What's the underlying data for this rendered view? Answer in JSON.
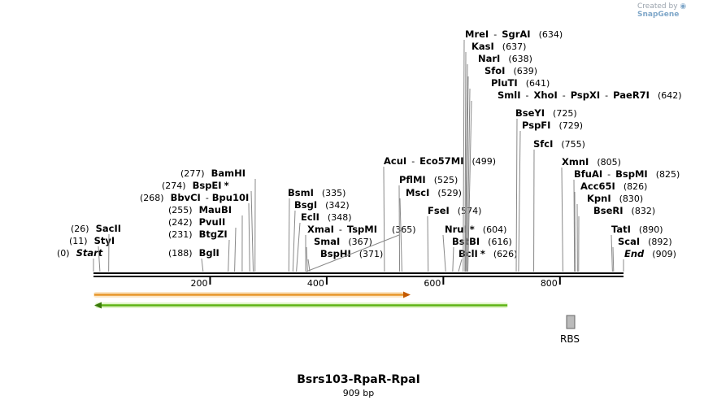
{
  "watermark": {
    "prefix": "Created by",
    "brand": "SnapGene"
  },
  "title": "Bsrs103-RpaR-RpaI",
  "subtitle": "909 bp",
  "sequence_length": 909,
  "ticks": [
    "200",
    "400",
    "600",
    "800"
  ],
  "feature_label": "RBS",
  "sites": [
    {
      "parts": [
        "Start"
      ],
      "pos": "(0)",
      "side": "left",
      "italic": true
    },
    {
      "parts": [
        "StyI"
      ],
      "pos": "(11)",
      "side": "left"
    },
    {
      "parts": [
        "SacII"
      ],
      "pos": "(26)",
      "side": "left"
    },
    {
      "parts": [
        "BglI"
      ],
      "pos": "(188)",
      "side": "left"
    },
    {
      "parts": [
        "BtgZI"
      ],
      "pos": "(231)",
      "side": "left"
    },
    {
      "parts": [
        "PvuII"
      ],
      "pos": "(242)",
      "side": "left"
    },
    {
      "parts": [
        "MauBI"
      ],
      "pos": "(255)",
      "side": "left"
    },
    {
      "parts": [
        "BbvCI",
        "Bpu10I"
      ],
      "pos": "(268)",
      "side": "left"
    },
    {
      "parts": [
        "BspEI"
      ],
      "star": true,
      "pos": "(274)",
      "side": "left"
    },
    {
      "parts": [
        "BamHI"
      ],
      "pos": "(277)",
      "side": "left"
    },
    {
      "parts": [
        "BsmI"
      ],
      "pos": "(335)",
      "side": "right"
    },
    {
      "parts": [
        "BsgI"
      ],
      "pos": "(342)",
      "side": "right"
    },
    {
      "parts": [
        "EclI"
      ],
      "pos": "(348)",
      "side": "right"
    },
    {
      "parts": [
        "XmaI",
        "TspMI"
      ],
      "pos": "",
      "side": "right"
    },
    {
      "parts": [
        "SmaI"
      ],
      "pos": "(367)",
      "side": "right"
    },
    {
      "parts": [
        "BspHI"
      ],
      "pos": "(371)",
      "side": "right"
    },
    {
      "parts": [
        ""
      ],
      "pos": "(365)",
      "side": "right"
    },
    {
      "parts": [
        "AcuI",
        "Eco57MI"
      ],
      "pos": "(499)",
      "side": "right"
    },
    {
      "parts": [
        "PflMI"
      ],
      "pos": "(525)",
      "side": "right"
    },
    {
      "parts": [
        "MscI"
      ],
      "pos": "(529)",
      "side": "right"
    },
    {
      "parts": [
        "FseI"
      ],
      "pos": "(574)",
      "side": "right"
    },
    {
      "parts": [
        "NruI"
      ],
      "star": true,
      "pos": "(604)",
      "side": "right"
    },
    {
      "parts": [
        "BstBI"
      ],
      "pos": "(616)",
      "side": "right"
    },
    {
      "parts": [
        "BclI"
      ],
      "star": true,
      "pos": "(626)",
      "side": "right"
    },
    {
      "parts": [
        "MreI",
        "SgrAI"
      ],
      "pos": "(634)",
      "side": "right"
    },
    {
      "parts": [
        "KasI"
      ],
      "pos": "(637)",
      "side": "right"
    },
    {
      "parts": [
        "NarI"
      ],
      "pos": "(638)",
      "side": "right"
    },
    {
      "parts": [
        "SfoI"
      ],
      "pos": "(639)",
      "side": "right"
    },
    {
      "parts": [
        "PluTI"
      ],
      "pos": "(641)",
      "side": "right"
    },
    {
      "parts": [
        "SmlI",
        "XhoI",
        "PspXI",
        "PaeR7I"
      ],
      "pos": "(642)",
      "side": "right"
    },
    {
      "parts": [
        "BseYI"
      ],
      "pos": "(725)",
      "side": "right"
    },
    {
      "parts": [
        "PspFI"
      ],
      "pos": "(729)",
      "side": "right"
    },
    {
      "parts": [
        "SfcI"
      ],
      "pos": "(755)",
      "side": "right"
    },
    {
      "parts": [
        "XmnI"
      ],
      "pos": "(805)",
      "side": "right"
    },
    {
      "parts": [
        "BfuAI",
        "BspMI"
      ],
      "pos": "(825)",
      "side": "right"
    },
    {
      "parts": [
        "Acc65I"
      ],
      "pos": "(826)",
      "side": "right"
    },
    {
      "parts": [
        "KpnI"
      ],
      "pos": "(830)",
      "side": "right"
    },
    {
      "parts": [
        "BseRI"
      ],
      "pos": "(832)",
      "side": "right"
    },
    {
      "parts": [
        "TatI"
      ],
      "pos": "(890)",
      "side": "right"
    },
    {
      "parts": [
        "ScaI"
      ],
      "pos": "(892)",
      "side": "right"
    },
    {
      "parts": [
        "End"
      ],
      "pos": "(909)",
      "side": "right",
      "italic": true
    }
  ],
  "colors": {
    "orange_feature": "#f5a623",
    "green_feature": "#7ed321",
    "rbs_box": "#bbbbbb",
    "line": "#888888"
  }
}
